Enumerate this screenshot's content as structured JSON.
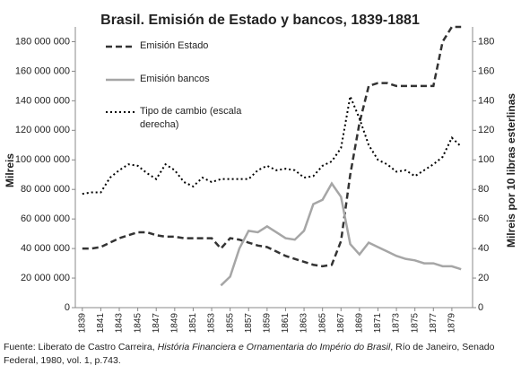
{
  "chart_data": {
    "type": "line",
    "title": "Brasil. Emisión de Estado y bancos, 1839-1881",
    "y_label": "Milreis",
    "y2_label": "Milreis por 10 libras esterlinas",
    "x": [
      1839,
      1840,
      1841,
      1842,
      1843,
      1844,
      1845,
      1846,
      1847,
      1848,
      1849,
      1850,
      1851,
      1852,
      1853,
      1854,
      1855,
      1856,
      1857,
      1858,
      1859,
      1860,
      1861,
      1862,
      1863,
      1864,
      1865,
      1866,
      1867,
      1868,
      1869,
      1870,
      1871,
      1872,
      1873,
      1874,
      1875,
      1876,
      1877,
      1878,
      1879,
      1880
    ],
    "xlim": [
      1838,
      1881
    ],
    "xticks": [
      1839,
      1841,
      1843,
      1845,
      1847,
      1849,
      1851,
      1853,
      1855,
      1857,
      1859,
      1861,
      1863,
      1865,
      1867,
      1869,
      1871,
      1873,
      1875,
      1877,
      1879
    ],
    "ylim": [
      0,
      190000000
    ],
    "yticks": [
      0,
      {
        "value": 20000000,
        "label": "20 000 000"
      },
      {
        "value": 40000000,
        "label": "40 000 000"
      },
      {
        "value": 60000000,
        "label": "60 000 000"
      },
      {
        "value": 80000000,
        "label": "80 000 000"
      },
      {
        "value": 100000000,
        "label": "100 000 000"
      },
      {
        "value": 120000000,
        "label": "120 000 000"
      },
      {
        "value": 140000000,
        "label": "140 000 000"
      },
      {
        "value": 160000000,
        "label": "160 000 000"
      },
      {
        "value": 180000000,
        "label": "180 000 000"
      }
    ],
    "y2lim": [
      0,
      190
    ],
    "y2ticks": [
      0,
      20,
      40,
      60,
      80,
      100,
      120,
      140,
      160,
      180
    ],
    "series": [
      {
        "name": "Emisión Estado",
        "color": "#333333",
        "style": "dashed",
        "values": [
          40000000,
          40000000,
          41000000,
          44000000,
          47000000,
          49000000,
          51000000,
          51000000,
          49000000,
          48000000,
          48000000,
          47000000,
          47000000,
          47000000,
          47000000,
          40000000,
          47000000,
          46000000,
          44000000,
          42000000,
          41000000,
          38000000,
          35000000,
          33000000,
          31000000,
          29000000,
          28000000,
          29000000,
          45000000,
          90000000,
          125000000,
          150000000,
          152000000,
          152000000,
          150000000,
          150000000,
          150000000,
          150000000,
          150000000,
          180000000,
          190000000,
          190000000
        ]
      },
      {
        "name": "Emisión bancos",
        "color": "#a6a6a6",
        "style": "solid",
        "values": [
          null,
          null,
          null,
          null,
          null,
          null,
          null,
          null,
          null,
          null,
          null,
          null,
          null,
          null,
          null,
          15000000,
          21000000,
          40000000,
          52000000,
          51000000,
          55000000,
          51000000,
          47000000,
          46000000,
          52000000,
          70000000,
          73000000,
          84000000,
          75000000,
          43000000,
          36000000,
          44000000,
          41000000,
          38000000,
          35000000,
          33000000,
          32000000,
          30000000,
          30000000,
          28000000,
          28000000,
          26000000
        ]
      },
      {
        "name": "Tipo de cambio (escala derecha)",
        "color": "#000000",
        "style": "dotted",
        "axis": "y2",
        "values": [
          77,
          78,
          78,
          88,
          93,
          97,
          96,
          91,
          87,
          97,
          93,
          85,
          82,
          88,
          85,
          87,
          87,
          87,
          87,
          93,
          96,
          93,
          94,
          93,
          88,
          89,
          96,
          99,
          108,
          143,
          128,
          110,
          100,
          97,
          92,
          93,
          89,
          93,
          97,
          102,
          115,
          109
        ]
      }
    ],
    "source": {
      "prefix": "Fuente: Liberato de Castro Carreira, ",
      "italic": "História Financiera e Ornamentaria do Império do Brasil",
      "suffix": ", Río de Janeiro, Senado Federal, 1980, vol. 1, p.743."
    }
  }
}
